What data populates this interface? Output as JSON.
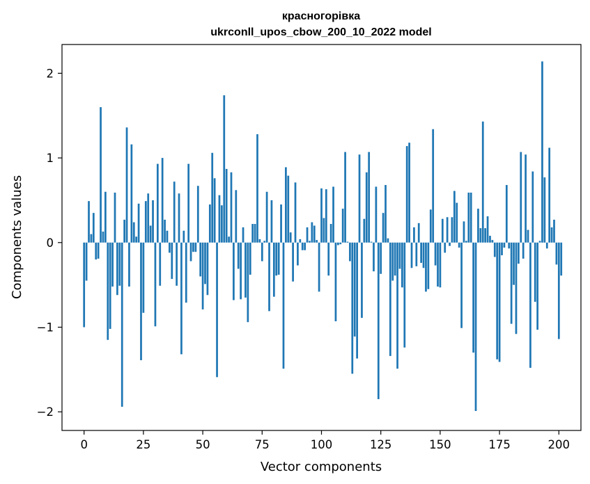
{
  "chart_data": {
    "type": "bar",
    "title": "красногорівка",
    "subtitle": "ukrconll_upos_cbow_200_10_2022 model",
    "xlabel": "Vector components",
    "ylabel": "Components values",
    "xlim": [
      -9.3,
      209.3
    ],
    "ylim": [
      -2.22,
      2.34
    ],
    "x_ticks": [
      0,
      25,
      50,
      75,
      100,
      125,
      150,
      175,
      200
    ],
    "y_ticks": [
      -2,
      -1,
      0,
      1,
      2
    ],
    "y_tick_labels": [
      "−2",
      "−1",
      "0",
      "1",
      "2"
    ],
    "bar_color": "#1f77b4",
    "values": [
      -1.0,
      -0.45,
      0.49,
      0.1,
      0.35,
      -0.2,
      -0.19,
      1.6,
      0.13,
      0.6,
      -1.15,
      -1.02,
      -0.52,
      0.59,
      -0.62,
      -0.51,
      -1.94,
      0.27,
      1.36,
      -0.52,
      1.16,
      0.24,
      0.07,
      0.46,
      -1.39,
      -0.83,
      0.49,
      0.58,
      0.2,
      0.5,
      -0.99,
      0.93,
      -0.51,
      1.0,
      0.27,
      0.14,
      -0.12,
      -0.43,
      0.72,
      -0.51,
      0.58,
      -1.32,
      0.14,
      -0.71,
      0.93,
      -0.22,
      -0.11,
      -0.11,
      0.67,
      -0.4,
      -0.79,
      -0.49,
      -0.62,
      0.45,
      1.06,
      0.76,
      -1.59,
      0.56,
      0.44,
      1.74,
      0.87,
      0.07,
      0.83,
      -0.68,
      0.62,
      -0.31,
      -0.67,
      0.18,
      -0.65,
      -0.94,
      -0.38,
      0.22,
      0.22,
      1.28,
      0.04,
      -0.22,
      0.02,
      0.6,
      -0.81,
      0.5,
      -0.64,
      -0.39,
      -0.38,
      0.45,
      -1.49,
      0.89,
      0.79,
      0.12,
      -0.46,
      0.71,
      -0.27,
      0.04,
      -0.09,
      -0.09,
      0.18,
      0.02,
      0.24,
      0.2,
      0.03,
      -0.58,
      0.64,
      0.29,
      0.63,
      -0.39,
      0.22,
      0.66,
      -0.93,
      -0.03,
      -0.02,
      0.4,
      1.07,
      0.01,
      -0.22,
      -1.55,
      -1.11,
      -1.37,
      1.04,
      -0.89,
      0.28,
      0.83,
      1.07,
      0.01,
      -0.34,
      0.66,
      -1.85,
      -0.37,
      0.35,
      0.68,
      0.05,
      -1.34,
      -0.45,
      -0.39,
      -1.49,
      -0.31,
      -0.53,
      -1.24,
      1.14,
      1.18,
      -0.3,
      0.18,
      -0.28,
      0.23,
      -0.24,
      -0.3,
      -0.58,
      -0.55,
      0.39,
      1.34,
      -0.27,
      -0.52,
      -0.53,
      0.28,
      -0.12,
      0.3,
      -0.04,
      0.3,
      0.61,
      0.47,
      -0.06,
      -1.01,
      0.25,
      0.02,
      0.59,
      0.59,
      -1.3,
      -1.99,
      0.4,
      0.17,
      1.43,
      0.17,
      0.31,
      0.08,
      0.03,
      -0.17,
      -1.38,
      -1.41,
      -0.15,
      -0.06,
      0.68,
      -0.07,
      -0.96,
      -0.5,
      -1.08,
      -0.25,
      1.07,
      -0.19,
      1.04,
      0.15,
      -1.48,
      0.84,
      -0.7,
      -1.03,
      0.02,
      2.14,
      0.77,
      -0.07,
      1.12,
      0.18,
      0.27,
      -0.26,
      -1.14,
      -0.39
    ]
  }
}
